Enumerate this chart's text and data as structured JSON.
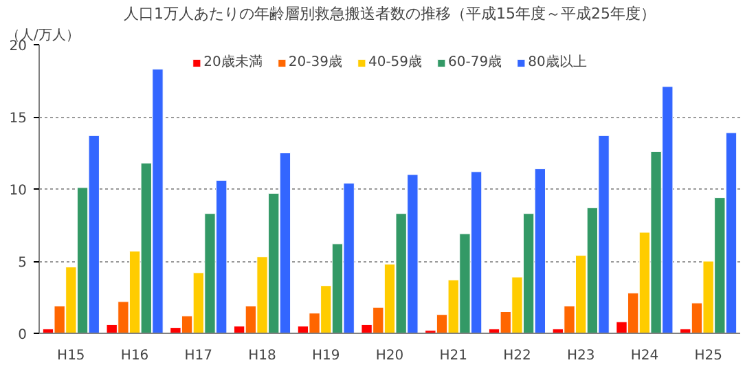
{
  "chart_data": {
    "type": "bar",
    "title": "人口1万人あたりの年齢層別救急搬送者数の推移（平成15年度～平成25年度）",
    "ylabel": "（人/万人）",
    "categories": [
      "H15",
      "H16",
      "H17",
      "H18",
      "H19",
      "H20",
      "H21",
      "H22",
      "H23",
      "H24",
      "H25"
    ],
    "series": [
      {
        "name": "20歳未満",
        "color": "#ff0000",
        "values": [
          0.3,
          0.6,
          0.4,
          0.5,
          0.5,
          0.6,
          0.2,
          0.3,
          0.3,
          0.8,
          0.3
        ]
      },
      {
        "name": "20-39歳",
        "color": "#ff6600",
        "values": [
          1.9,
          2.2,
          1.2,
          1.9,
          1.4,
          1.8,
          1.3,
          1.5,
          1.9,
          2.8,
          2.1
        ]
      },
      {
        "name": "40-59歳",
        "color": "#ffcc00",
        "values": [
          4.6,
          5.7,
          4.2,
          5.3,
          3.3,
          4.8,
          3.7,
          3.9,
          5.4,
          7.0,
          5.0
        ]
      },
      {
        "name": "60-79歳",
        "color": "#339966",
        "values": [
          10.1,
          11.8,
          8.3,
          9.7,
          6.2,
          8.3,
          6.9,
          8.3,
          8.7,
          12.6,
          9.4
        ]
      },
      {
        "name": "80歳以上",
        "color": "#3366ff",
        "values": [
          13.7,
          18.3,
          10.6,
          12.5,
          10.4,
          11.0,
          11.2,
          11.4,
          13.7,
          17.1,
          13.9
        ]
      }
    ],
    "ylim": [
      0,
      20
    ],
    "yticks": [
      0,
      5,
      10,
      15,
      20
    ],
    "grid": "y",
    "legend": "top"
  }
}
